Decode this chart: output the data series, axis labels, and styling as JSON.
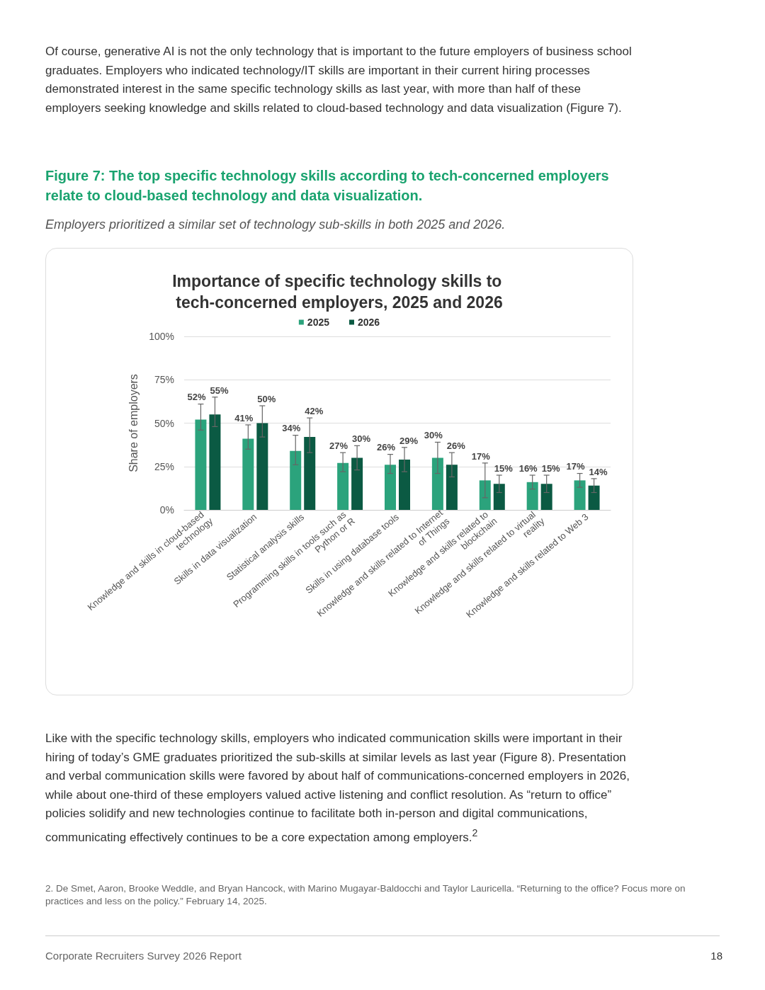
{
  "chart_data": {
    "type": "bar",
    "title": "Importance of specific technology skills to tech-concerned employers, 2025 and 2026",
    "ylabel": "Share of employers",
    "annotations": [
      "Of course, generative AI is not the only technology that is important to the future employers of business school graduates. Employers who indicated technology/IT skills are important in their current hiring processes demonstrated interest in the same specific technology skills as last year, with more than half of these employers seeking knowledge and skills related to cloud-based technology and data visualization (Figure 7).",
      "Figure 7: The top specific technology skills according to tech-concerned employers relate to cloud-based technology and data visualization.",
      "Employers prioritized a similar set of technology sub-skills in both 2025 and 2026.",
      "Like with the specific technology skills, employers who indicated communication skills were important in their hiring of today’s GME graduates prioritized the sub-skills at similar levels as last year (Figure 8). Presentation and verbal communication skills were favored by about half of communications-concerned employers in 2026, while about one-third of these employers valued active listening and conflict resolution. As “return to office” policies solidify and new technologies continue to facilitate both in-person and digital communications, communicating effectively continues to be a core expectation among employers.$^{2}$",
      "2. De Smet, Aaron, Brooke Weddle, and Bryan Hancock, with Marino Mugayar-Baldocchi and Taylor Lauricella. “Returning to the office? Focus more on practices and less on the policy.” February 14, 2025.",
      "Corporate Recruiters Survey 2026 Report",
      "18"
    ],
    "categories": [
      "Knowledge and skills in cloud-based technology",
      "Skills in data visualization",
      "Statistical analysis skills",
      "Programming skills in tools such as Python or R",
      "Skills in using database tools",
      "Knowledge and skills related to Internet of Things",
      "Knowledge and skills related to blockchain",
      "Knowledge and skills related to virtual reality",
      "Knowledge and skills related to Web 3"
    ],
    "series": [
      {
        "name": "2025",
        "color": "#2ba37c",
        "values": [
          52,
          41,
          34,
          27,
          26,
          30,
          17,
          16,
          17
        ],
        "value_labels": [
          "52%",
          "41%",
          "34%",
          "27%",
          "26%",
          "30%",
          "17%",
          "16%",
          "17%"
        ],
        "errors": [
          [
            46,
            61
          ],
          [
            35,
            49
          ],
          [
            26,
            43
          ],
          [
            22,
            33
          ],
          [
            21,
            32
          ],
          [
            21,
            39
          ],
          [
            7,
            27
          ],
          [
            12,
            20
          ],
          [
            13,
            21
          ]
        ]
      },
      {
        "name": "2026",
        "color": "#0b5a43",
        "values": [
          55,
          50,
          42,
          30,
          29,
          26,
          15,
          15,
          14
        ],
        "value_labels": [
          "55%",
          "50%",
          "42%",
          "30%",
          "29%",
          "26%",
          "15%",
          "15%",
          "14%"
        ],
        "errors": [
          [
            48,
            65
          ],
          [
            42,
            60
          ],
          [
            33,
            53
          ],
          [
            23,
            37
          ],
          [
            22,
            36
          ],
          [
            19,
            33
          ],
          [
            10,
            20
          ],
          [
            10,
            20
          ],
          [
            10,
            18
          ]
        ]
      }
    ],
    "ylim": [
      0,
      100
    ],
    "yticks": [
      {
        "value": 0,
        "label": "0%"
      },
      {
        "value": 25,
        "label": "25%"
      },
      {
        "value": 50,
        "label": "50%"
      },
      {
        "value": 75,
        "label": "75%"
      },
      {
        "value": 100,
        "label": "100%"
      }
    ],
    "grid": "y",
    "legend": "top"
  }
}
